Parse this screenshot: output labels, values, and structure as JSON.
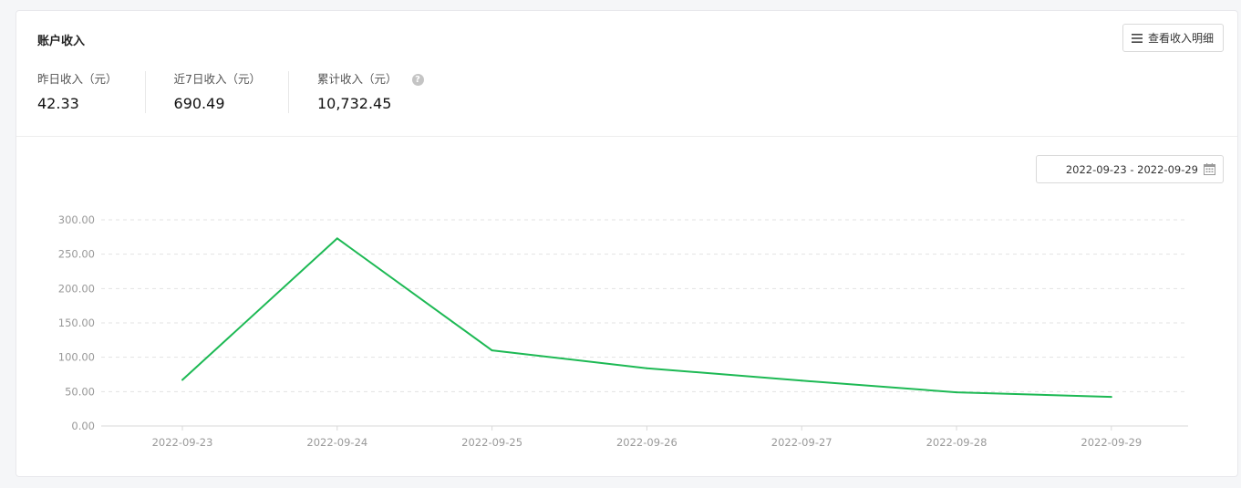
{
  "card": {
    "title": "账户收入",
    "detail_button_label": "查看收入明细"
  },
  "stats": [
    {
      "label": "昨日收入（元）",
      "value": "42.33"
    },
    {
      "label": "近7日收入（元）",
      "value": "690.49"
    },
    {
      "label": "累计收入（元）",
      "value": "10,732.45"
    }
  ],
  "date_range": {
    "value": "2022-09-23 - 2022-09-29"
  },
  "icons": {
    "detail": "list-icon",
    "help": "question-circle-icon",
    "calendar": "calendar-icon"
  },
  "colors": {
    "line": "#1db954",
    "grid": "#e3e3e3",
    "axis_text": "#999999"
  },
  "chart_data": {
    "type": "line",
    "title": "",
    "xlabel": "",
    "ylabel": "",
    "x": [
      "2022-09-23",
      "2022-09-24",
      "2022-09-25",
      "2022-09-26",
      "2022-09-27",
      "2022-09-28",
      "2022-09-29"
    ],
    "series": [
      {
        "values": [
          67,
          273,
          110,
          84,
          66,
          49,
          42.33
        ]
      }
    ],
    "ylim": [
      0,
      300
    ],
    "yticks": [
      "0.00",
      "50.00",
      "100.00",
      "150.00",
      "200.00",
      "250.00",
      "300.00"
    ],
    "grid": true,
    "legend": "none"
  }
}
